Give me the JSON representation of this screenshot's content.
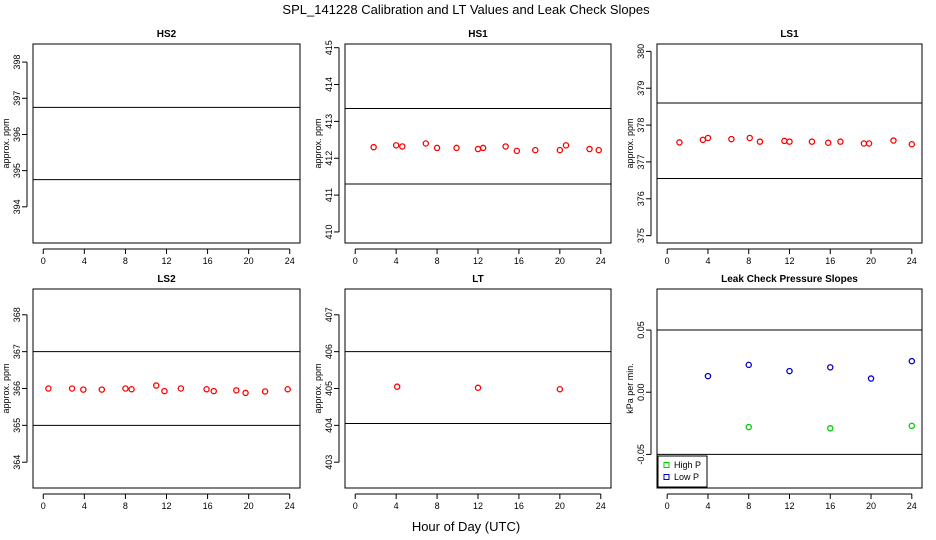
{
  "figure": {
    "title": "SPL_141228  Calibration and LT Values and Leak Check Slopes",
    "xlabel": "Hour of Day (UTC)"
  },
  "chart_data": [
    {
      "type": "scatter",
      "title": "HS2",
      "ylabel": "approx. ppm",
      "xlim": [
        -1,
        25
      ],
      "ylim": [
        393,
        398.5
      ],
      "xticks": [
        0,
        4,
        8,
        12,
        16,
        20,
        24
      ],
      "yticks": [
        394,
        395,
        396,
        397,
        398
      ],
      "hlines": [
        394.75,
        396.75
      ],
      "series": [
        {
          "marker": "circle",
          "color": "#ff0000",
          "x": [],
          "y": []
        }
      ]
    },
    {
      "type": "scatter",
      "title": "HS1",
      "ylabel": "approx. ppm",
      "xlim": [
        -1,
        25
      ],
      "ylim": [
        409.7,
        415.1
      ],
      "xticks": [
        0,
        4,
        8,
        12,
        16,
        20,
        24
      ],
      "yticks": [
        410,
        411,
        412,
        413,
        414,
        415
      ],
      "hlines": [
        411.3,
        413.35
      ],
      "series": [
        {
          "marker": "circle",
          "color": "#ff0000",
          "x": [
            1.8,
            4.0,
            4.6,
            6.9,
            8.0,
            9.9,
            12.0,
            12.5,
            14.7,
            15.8,
            17.6,
            20.0,
            20.6,
            22.9,
            23.8
          ],
          "y": [
            412.3,
            412.35,
            412.32,
            412.4,
            412.28,
            412.28,
            412.25,
            412.28,
            412.32,
            412.2,
            412.22,
            412.22,
            412.35,
            412.25,
            412.22
          ]
        }
      ]
    },
    {
      "type": "scatter",
      "title": "LS1",
      "ylabel": "approx. ppm",
      "xlim": [
        -1,
        25
      ],
      "ylim": [
        374.8,
        380.2
      ],
      "xticks": [
        0,
        4,
        8,
        12,
        16,
        20,
        24
      ],
      "yticks": [
        375,
        376,
        377,
        378,
        379,
        380
      ],
      "hlines": [
        376.55,
        378.6
      ],
      "series": [
        {
          "marker": "circle",
          "color": "#ff0000",
          "x": [
            1.2,
            3.5,
            4.0,
            6.3,
            8.1,
            9.1,
            11.5,
            12.0,
            14.2,
            15.8,
            17.0,
            19.3,
            19.8,
            22.2,
            24.0
          ],
          "y": [
            377.53,
            377.6,
            377.65,
            377.62,
            377.65,
            377.55,
            377.57,
            377.55,
            377.55,
            377.52,
            377.55,
            377.5,
            377.5,
            377.58,
            377.48
          ]
        }
      ]
    },
    {
      "type": "scatter",
      "title": "LS2",
      "ylabel": "approx. ppm",
      "xlim": [
        -1,
        25
      ],
      "ylim": [
        363.3,
        368.7
      ],
      "xticks": [
        0,
        4,
        8,
        12,
        16,
        20,
        24
      ],
      "yticks": [
        364,
        365,
        366,
        367,
        368
      ],
      "hlines": [
        365.0,
        367.0
      ],
      "series": [
        {
          "marker": "circle",
          "color": "#ff0000",
          "x": [
            0.5,
            2.8,
            3.9,
            5.7,
            8.0,
            8.6,
            11.0,
            11.8,
            13.4,
            15.9,
            16.6,
            18.8,
            19.7,
            21.6,
            23.8
          ],
          "y": [
            366.0,
            366.0,
            365.97,
            365.97,
            366.0,
            365.98,
            366.08,
            365.93,
            366.0,
            365.98,
            365.93,
            365.95,
            365.88,
            365.92,
            365.98
          ]
        }
      ]
    },
    {
      "type": "scatter",
      "title": "LT",
      "ylabel": "approx. ppm",
      "xlim": [
        -1,
        25
      ],
      "ylim": [
        402.3,
        407.7
      ],
      "xticks": [
        0,
        4,
        8,
        12,
        16,
        20,
        24
      ],
      "yticks": [
        403,
        404,
        405,
        406,
        407
      ],
      "hlines": [
        404.05,
        406.0
      ],
      "series": [
        {
          "marker": "circle",
          "color": "#ff0000",
          "x": [
            4.1,
            12.0,
            20.0
          ],
          "y": [
            405.05,
            405.02,
            404.98
          ]
        }
      ]
    },
    {
      "type": "scatter",
      "title": "Leak Check Pressure Slopes",
      "ylabel": "kPa per min.",
      "xlim": [
        -1,
        25
      ],
      "ylim": [
        -0.077,
        0.083
      ],
      "xticks": [
        0,
        4,
        8,
        12,
        16,
        20,
        24
      ],
      "yticks": [
        -0.05,
        0.0,
        0.05
      ],
      "ytick_labels": [
        "-0.05",
        "0.00",
        "0.05"
      ],
      "hlines": [
        -0.05,
        0.05
      ],
      "legend": "bottom-left",
      "series": [
        {
          "name": "High P",
          "marker": "circle",
          "color": "#00cc00",
          "x": [
            8.0,
            16.0,
            24.0
          ],
          "y": [
            -0.028,
            -0.029,
            -0.027
          ]
        },
        {
          "name": "Low P",
          "marker": "circle",
          "color": "#0000cc",
          "x": [
            4.0,
            8.0,
            12.0,
            16.0,
            20.0,
            24.0
          ],
          "y": [
            0.013,
            0.022,
            0.017,
            0.02,
            0.011,
            0.025
          ]
        }
      ]
    }
  ]
}
